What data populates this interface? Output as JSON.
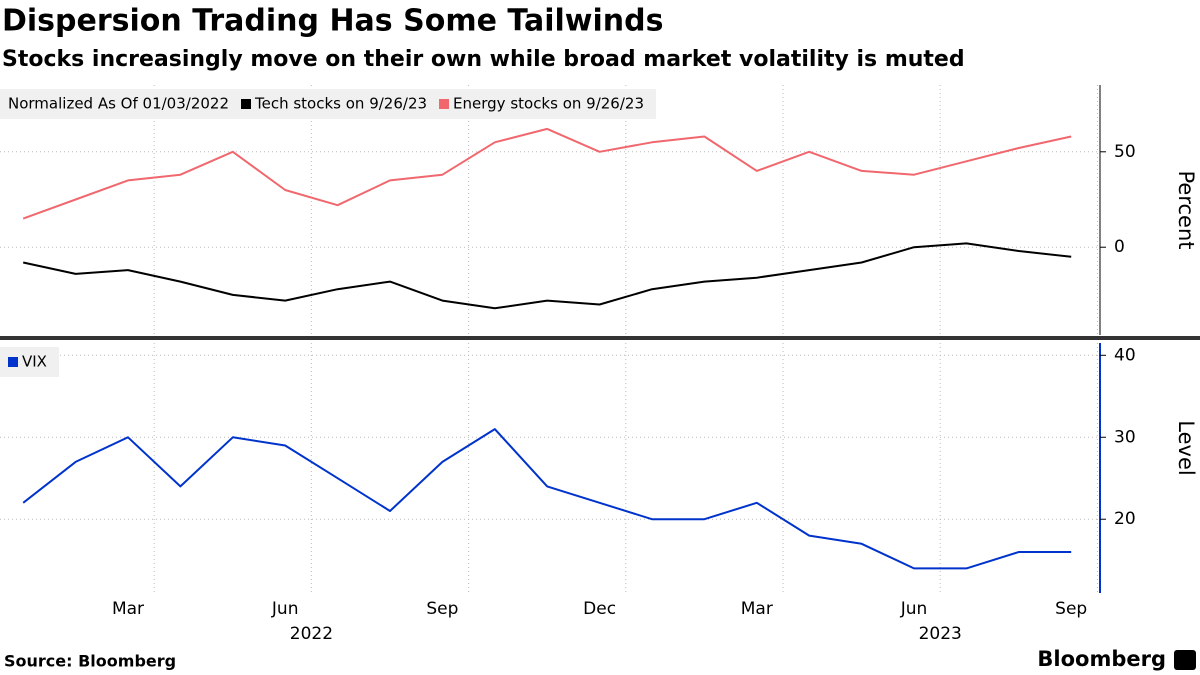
{
  "title": "Dispersion Trading Has Some Tailwinds",
  "subtitle": "Stocks increasingly move on their own while broad market volatility is muted",
  "source": "Source: Bloomberg",
  "brand": "Bloomberg",
  "chart_data": [
    {
      "type": "line",
      "legend_title": "Normalized As Of 01/03/2022",
      "x": [
        "2022-01",
        "2022-02",
        "2022-03",
        "2022-04",
        "2022-05",
        "2022-06",
        "2022-07",
        "2022-08",
        "2022-09",
        "2022-10",
        "2022-11",
        "2022-12",
        "2023-01",
        "2023-02",
        "2023-03",
        "2023-04",
        "2023-05",
        "2023-06",
        "2023-07",
        "2023-08",
        "2023-09"
      ],
      "series": [
        {
          "name": "Tech stocks on 9/26/23",
          "color": "#000000",
          "values": [
            -8,
            -14,
            -12,
            -18,
            -25,
            -28,
            -22,
            -18,
            -28,
            -32,
            -28,
            -30,
            -22,
            -18,
            -16,
            -12,
            -8,
            0,
            2,
            -2,
            -5
          ]
        },
        {
          "name": "Energy stocks on 9/26/23",
          "color": "#f0686e",
          "values": [
            15,
            25,
            35,
            38,
            50,
            30,
            22,
            35,
            38,
            55,
            62,
            50,
            55,
            58,
            40,
            50,
            40,
            38,
            45,
            52,
            58
          ]
        }
      ],
      "ylim": [
        -46,
        85
      ],
      "yticks": [
        0,
        50
      ],
      "ylabel": "Percent",
      "grid": true
    },
    {
      "type": "line",
      "x": [
        "2022-01",
        "2022-02",
        "2022-03",
        "2022-04",
        "2022-05",
        "2022-06",
        "2022-07",
        "2022-08",
        "2022-09",
        "2022-10",
        "2022-11",
        "2022-12",
        "2023-01",
        "2023-02",
        "2023-03",
        "2023-04",
        "2023-05",
        "2023-06",
        "2023-07",
        "2023-08",
        "2023-09"
      ],
      "series": [
        {
          "name": "VIX",
          "color": "#0033cc",
          "values": [
            22,
            27,
            30,
            24,
            30,
            29,
            25,
            21,
            27,
            31,
            24,
            22,
            20,
            20,
            22,
            18,
            17,
            14,
            14,
            16,
            16
          ]
        }
      ],
      "ylim": [
        11,
        41.5
      ],
      "yticks": [
        20,
        30,
        40
      ],
      "ylabel": "Level",
      "grid": true,
      "xticks": [
        {
          "value": "2022-03",
          "label": "Mar"
        },
        {
          "value": "2022-06",
          "label": "Jun"
        },
        {
          "value": "2022-09",
          "label": "Sep"
        },
        {
          "value": "2022-12",
          "label": "Dec"
        },
        {
          "value": "2023-03",
          "label": "Mar"
        },
        {
          "value": "2023-06",
          "label": "Jun"
        },
        {
          "value": "2023-09",
          "label": "Sep"
        }
      ],
      "year_labels": [
        {
          "value": "2022-07",
          "label": "2022"
        },
        {
          "value": "2023-07",
          "label": "2023"
        }
      ]
    }
  ]
}
